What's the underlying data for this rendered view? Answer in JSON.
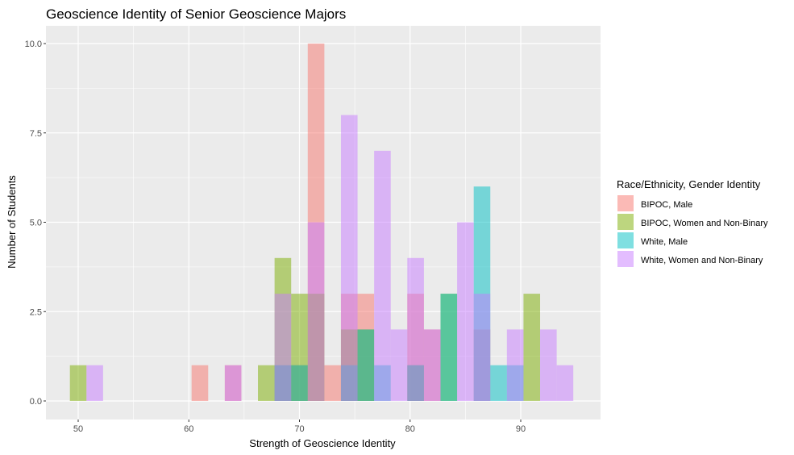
{
  "chart_data": {
    "type": "bar",
    "title": "Geoscience Identity of Senior Geoscience Majors",
    "xlabel": "Strength of Geoscience Identity",
    "ylabel": "Number of Students",
    "xlim": [
      47,
      97
    ],
    "ylim": [
      -0.5,
      10.5
    ],
    "x_ticks": [
      50,
      60,
      70,
      80,
      90
    ],
    "x_tick_labels": [
      "50",
      "60",
      "70",
      "80",
      "90"
    ],
    "y_ticks": [
      0,
      2.5,
      5,
      7.5,
      10
    ],
    "y_tick_labels": [
      "0.0",
      "2.5",
      "5.0",
      "7.5",
      "10.0"
    ],
    "bin_width": 1.5,
    "grid": true,
    "legend_title": "Race/Ethnicity, Gender Identity",
    "legend_position": "right",
    "series": [
      {
        "name": "BIPOC, Male",
        "color": "#F8766D",
        "bins": [
          {
            "x": 61.0,
            "count": 1
          },
          {
            "x": 64.0,
            "count": 1
          },
          {
            "x": 68.5,
            "count": 1
          },
          {
            "x": 70.0,
            "count": 1
          },
          {
            "x": 71.5,
            "count": 10
          },
          {
            "x": 73.0,
            "count": 1
          },
          {
            "x": 74.5,
            "count": 3
          },
          {
            "x": 76.0,
            "count": 3
          },
          {
            "x": 80.5,
            "count": 3
          },
          {
            "x": 82.0,
            "count": 2
          },
          {
            "x": 86.5,
            "count": 2
          }
        ]
      },
      {
        "name": "BIPOC, Women and Non-Binary",
        "color": "#7CAE00",
        "bins": [
          {
            "x": 50.0,
            "count": 1
          },
          {
            "x": 67.0,
            "count": 1
          },
          {
            "x": 68.5,
            "count": 4
          },
          {
            "x": 70.0,
            "count": 3
          },
          {
            "x": 71.5,
            "count": 3
          },
          {
            "x": 74.5,
            "count": 2
          },
          {
            "x": 76.0,
            "count": 2
          },
          {
            "x": 80.5,
            "count": 1
          },
          {
            "x": 83.5,
            "count": 3
          },
          {
            "x": 91.0,
            "count": 3
          }
        ]
      },
      {
        "name": "White, Male",
        "color": "#00BFC4",
        "bins": [
          {
            "x": 68.5,
            "count": 1
          },
          {
            "x": 70.0,
            "count": 1
          },
          {
            "x": 74.5,
            "count": 1
          },
          {
            "x": 76.0,
            "count": 2
          },
          {
            "x": 77.5,
            "count": 1
          },
          {
            "x": 80.5,
            "count": 1
          },
          {
            "x": 83.5,
            "count": 3
          },
          {
            "x": 86.5,
            "count": 6
          },
          {
            "x": 88.0,
            "count": 1
          },
          {
            "x": 89.5,
            "count": 1
          }
        ]
      },
      {
        "name": "White, Women and Non-Binary",
        "color": "#C77CFF",
        "bins": [
          {
            "x": 51.5,
            "count": 1
          },
          {
            "x": 64.0,
            "count": 1
          },
          {
            "x": 68.5,
            "count": 3
          },
          {
            "x": 71.5,
            "count": 5
          },
          {
            "x": 74.5,
            "count": 8
          },
          {
            "x": 77.5,
            "count": 7
          },
          {
            "x": 79.0,
            "count": 2
          },
          {
            "x": 80.5,
            "count": 4
          },
          {
            "x": 82.0,
            "count": 2
          },
          {
            "x": 85.0,
            "count": 5
          },
          {
            "x": 86.5,
            "count": 3
          },
          {
            "x": 89.5,
            "count": 2
          },
          {
            "x": 92.5,
            "count": 2
          },
          {
            "x": 94.0,
            "count": 1
          }
        ]
      }
    ]
  }
}
